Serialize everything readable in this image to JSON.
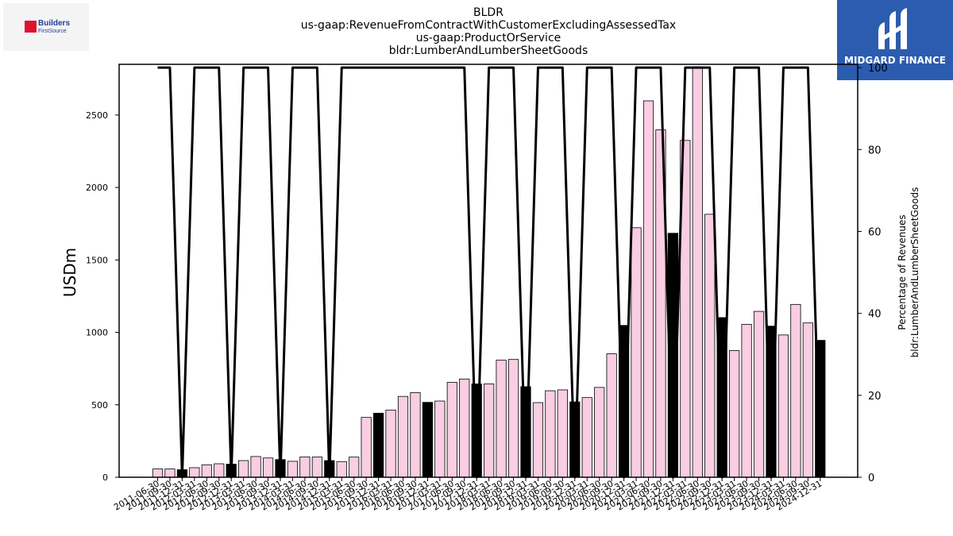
{
  "logos": {
    "left_text_1": "Builders",
    "left_text_2": "FirstSource",
    "right_text": "MIDGARD FINANCE",
    "right_bg": "#2c5cb0"
  },
  "chart_data": {
    "type": "bar",
    "title_lines": [
      "BLDR",
      "us-gaap:RevenueFromContractWithCustomerExcludingAssessedTax",
      "us-gaap:ProductOrService",
      "bldr:LumberAndLumberSheetGoods"
    ],
    "ylabel": "USDm",
    "ylabel_right": [
      "Percentage of Revenues",
      "bldr:LumberAndLumberSheetGoods"
    ],
    "ylim": [
      0,
      2850
    ],
    "yticks": [
      0,
      500,
      1000,
      1500,
      2000,
      2500
    ],
    "ylim_right": [
      0,
      100.8
    ],
    "yticks_right": [
      0,
      20,
      40,
      60,
      80,
      100
    ],
    "colors": {
      "quarterly": "#f9cde2",
      "annual": "#000000",
      "line": "#000000"
    },
    "bars": [
      {
        "date": "2011-06-30",
        "value": 57,
        "annual": false
      },
      {
        "date": "2011-09-30",
        "value": 57,
        "annual": false
      },
      {
        "date": "2011-12-31",
        "value": 52,
        "annual": true
      },
      {
        "date": "2012-03-31",
        "value": 66,
        "annual": false
      },
      {
        "date": "2012-06-30",
        "value": 86,
        "annual": false
      },
      {
        "date": "2012-09-30",
        "value": 93,
        "annual": false
      },
      {
        "date": "2012-12-31",
        "value": 90,
        "annual": true
      },
      {
        "date": "2013-03-31",
        "value": 115,
        "annual": false
      },
      {
        "date": "2013-06-30",
        "value": 143,
        "annual": false
      },
      {
        "date": "2013-09-30",
        "value": 133,
        "annual": false
      },
      {
        "date": "2013-12-31",
        "value": 122,
        "annual": true
      },
      {
        "date": "2014-03-31",
        "value": 110,
        "annual": false
      },
      {
        "date": "2014-06-30",
        "value": 140,
        "annual": false
      },
      {
        "date": "2014-09-30",
        "value": 140,
        "annual": false
      },
      {
        "date": "2014-12-31",
        "value": 115,
        "annual": true
      },
      {
        "date": "2015-03-31",
        "value": 108,
        "annual": false
      },
      {
        "date": "2015-06-30",
        "value": 139,
        "annual": false
      },
      {
        "date": "2015-09-30",
        "value": 413,
        "annual": false
      },
      {
        "date": "2015-12-31",
        "value": 442,
        "annual": true
      },
      {
        "date": "2016-03-31",
        "value": 464,
        "annual": false
      },
      {
        "date": "2016-06-30",
        "value": 558,
        "annual": false
      },
      {
        "date": "2016-09-30",
        "value": 584,
        "annual": false
      },
      {
        "date": "2016-12-31",
        "value": 517,
        "annual": true
      },
      {
        "date": "2017-03-31",
        "value": 526,
        "annual": false
      },
      {
        "date": "2017-06-30",
        "value": 655,
        "annual": false
      },
      {
        "date": "2017-09-30",
        "value": 678,
        "annual": false
      },
      {
        "date": "2017-12-31",
        "value": 644,
        "annual": true
      },
      {
        "date": "2018-03-31",
        "value": 644,
        "annual": false
      },
      {
        "date": "2018-06-30",
        "value": 808,
        "annual": false
      },
      {
        "date": "2018-09-30",
        "value": 813,
        "annual": false
      },
      {
        "date": "2018-12-31",
        "value": 625,
        "annual": true
      },
      {
        "date": "2019-03-31",
        "value": 515,
        "annual": false
      },
      {
        "date": "2019-06-30",
        "value": 597,
        "annual": false
      },
      {
        "date": "2019-09-30",
        "value": 603,
        "annual": false
      },
      {
        "date": "2019-12-31",
        "value": 520,
        "annual": true
      },
      {
        "date": "2020-03-31",
        "value": 550,
        "annual": false
      },
      {
        "date": "2020-06-30",
        "value": 620,
        "annual": false
      },
      {
        "date": "2020-09-30",
        "value": 852,
        "annual": false
      },
      {
        "date": "2020-12-31",
        "value": 1048,
        "annual": true
      },
      {
        "date": "2021-03-31",
        "value": 1722,
        "annual": false
      },
      {
        "date": "2021-06-30",
        "value": 2598,
        "annual": false
      },
      {
        "date": "2021-09-30",
        "value": 2398,
        "annual": false
      },
      {
        "date": "2021-12-31",
        "value": 1684,
        "annual": true
      },
      {
        "date": "2022-03-31",
        "value": 2325,
        "annual": false
      },
      {
        "date": "2022-06-30",
        "value": 2833,
        "annual": false
      },
      {
        "date": "2022-09-30",
        "value": 1815,
        "annual": false
      },
      {
        "date": "2022-12-31",
        "value": 1102,
        "annual": true
      },
      {
        "date": "2023-03-31",
        "value": 875,
        "annual": false
      },
      {
        "date": "2023-06-30",
        "value": 1055,
        "annual": false
      },
      {
        "date": "2023-09-30",
        "value": 1145,
        "annual": false
      },
      {
        "date": "2023-12-31",
        "value": 1043,
        "annual": true
      },
      {
        "date": "2024-03-31",
        "value": 982,
        "annual": false
      },
      {
        "date": "2024-06-30",
        "value": 1193,
        "annual": false
      },
      {
        "date": "2024-09-30",
        "value": 1065,
        "annual": false
      },
      {
        "date": "2024-12-31",
        "value": 945,
        "annual": true
      }
    ],
    "line_values": [
      100,
      100,
      0,
      100,
      100,
      100,
      0,
      100,
      100,
      100,
      0,
      100,
      100,
      100,
      0,
      100,
      100,
      100,
      100,
      100,
      100,
      100,
      100,
      100,
      100,
      100,
      0,
      100,
      100,
      100,
      0,
      100,
      100,
      100,
      0,
      100,
      100,
      100,
      0,
      100,
      100,
      100,
      0,
      100,
      100,
      100,
      0,
      100,
      100,
      100,
      0,
      100,
      100,
      100,
      0
    ]
  }
}
